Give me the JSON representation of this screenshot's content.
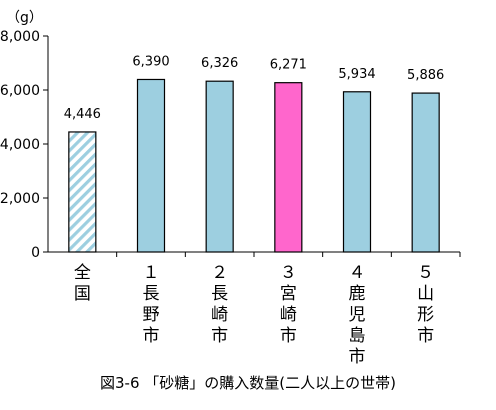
{
  "figure_caption": "図3-6 「砂糖」の購入数量(二人以上の世帯)",
  "colors": {
    "national_hatch": "#9DCFE0",
    "bar_blue": "#9DCFE0",
    "bar_highlight": "#FF66CC",
    "axis": "#000000"
  },
  "chart_data": {
    "type": "bar",
    "title": "",
    "xlabel": "",
    "ylabel": "（g）",
    "ylim": [
      0,
      8000
    ],
    "yticks": [
      "0",
      "2,000",
      "4,000",
      "6,000",
      "8,000"
    ],
    "ytick_values": [
      0,
      2000,
      4000,
      6000,
      8000
    ],
    "grid": false,
    "categories": [
      "全国",
      "１長野市",
      "２長崎市",
      "３宮崎市",
      "４鹿児島市",
      "５山形市"
    ],
    "category_label_lines": [
      [
        "全",
        "国"
      ],
      [
        "１",
        "長",
        "野",
        "市"
      ],
      [
        "２",
        "長",
        "崎",
        "市"
      ],
      [
        "３",
        "宮",
        "崎",
        "市"
      ],
      [
        "４",
        "鹿",
        "児",
        "島",
        "市"
      ],
      [
        "５",
        "山",
        "形",
        "市"
      ]
    ],
    "values": [
      4446,
      6390,
      6326,
      6271,
      5934,
      5886
    ],
    "value_labels": [
      "4,446",
      "6,390",
      "6,326",
      "6,271",
      "5,934",
      "5,886"
    ],
    "bar_styles": [
      "hatched",
      "blue",
      "blue",
      "highlight",
      "blue",
      "blue"
    ]
  }
}
